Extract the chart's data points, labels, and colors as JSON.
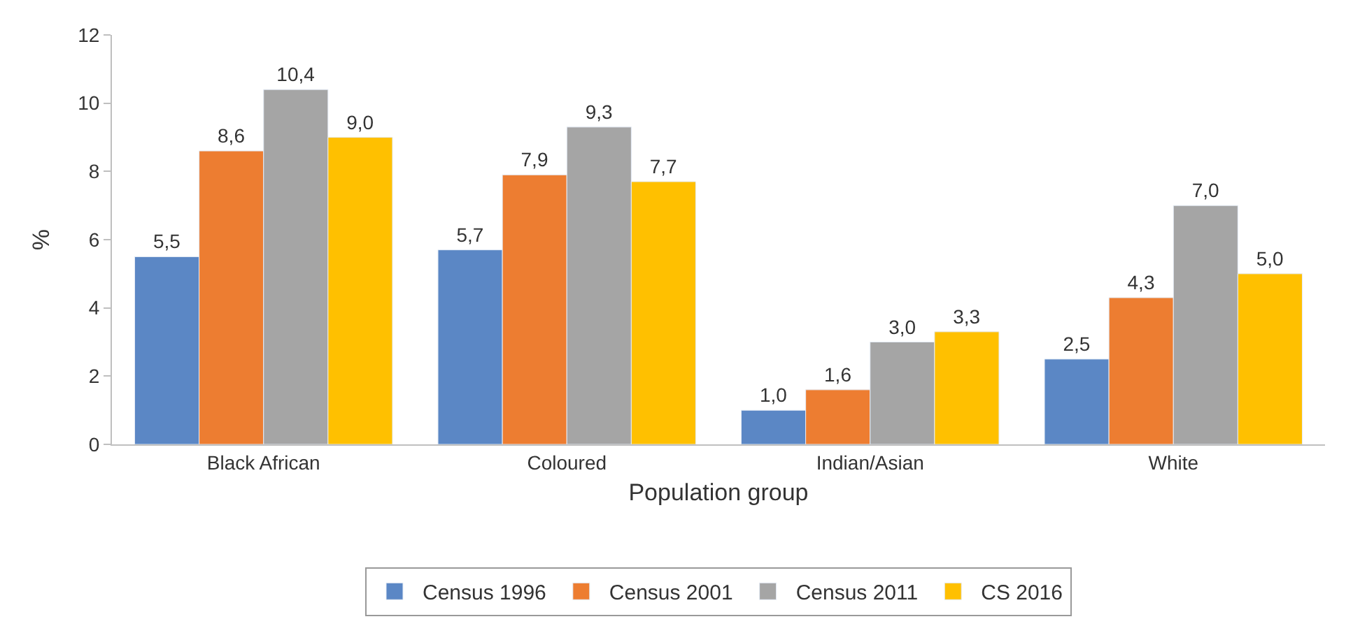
{
  "chart_data": {
    "type": "bar",
    "xlabel": "Population group",
    "ylabel": "%",
    "categories": [
      "Black African",
      "Coloured",
      "Indian/Asian",
      "White"
    ],
    "series": [
      {
        "name": "Census 1996",
        "color": "#5b87c5",
        "values": [
          5.5,
          5.7,
          1.0,
          2.5
        ],
        "value_labels": [
          "5,5",
          "5,7",
          "1,0",
          "2,5"
        ]
      },
      {
        "name": "Census 2001",
        "color": "#ed7d31",
        "values": [
          8.6,
          7.9,
          1.6,
          4.3
        ],
        "value_labels": [
          "8,6",
          "7,9",
          "1,6",
          "4,3"
        ]
      },
      {
        "name": "Census 2011",
        "color": "#a5a5a5",
        "values": [
          10.4,
          9.3,
          3.0,
          7.0
        ],
        "value_labels": [
          "10,4",
          "9,3",
          "3,0",
          "7,0"
        ]
      },
      {
        "name": "CS 2016",
        "color": "#ffc000",
        "values": [
          9.0,
          7.7,
          3.3,
          5.0
        ],
        "value_labels": [
          "9,0",
          "7,7",
          "3,3",
          "5,0"
        ]
      }
    ],
    "ylim": [
      0,
      12
    ],
    "yticks": [
      0,
      2,
      4,
      6,
      8,
      10,
      12
    ],
    "grid": false,
    "legend": "bottom"
  }
}
